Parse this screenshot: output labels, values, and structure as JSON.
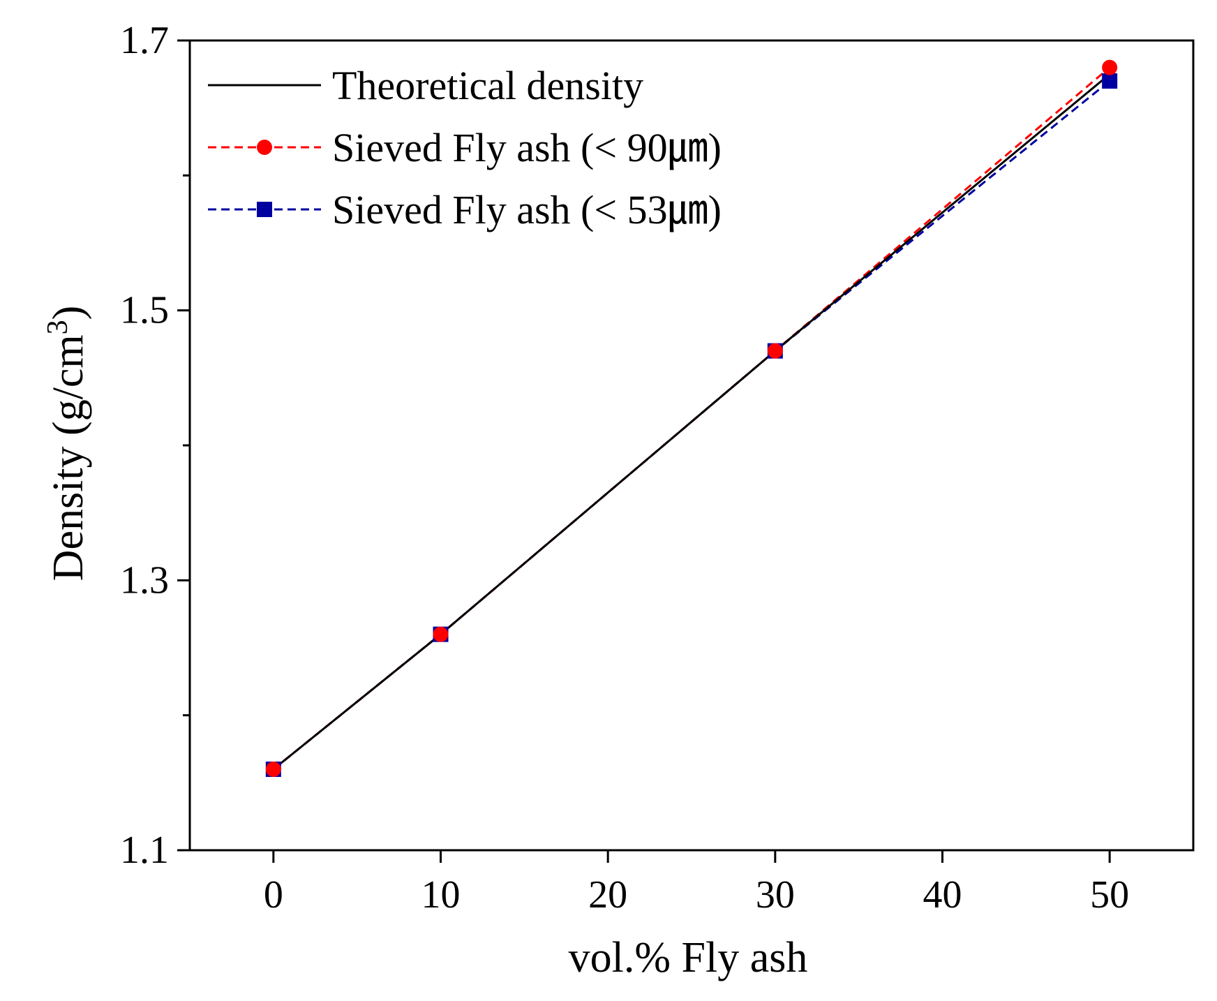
{
  "chart_data": {
    "type": "line",
    "title": "",
    "xlabel": "vol.% Fly ash",
    "ylabel": "Density (g/cm",
    "ylabel_superscript": "3",
    "ylabel_close": ")",
    "xlim": [
      -5,
      55
    ],
    "ylim": [
      1.1,
      1.7
    ],
    "xticks": [
      0,
      10,
      20,
      30,
      40,
      50
    ],
    "xtick_labels": [
      "0",
      "10",
      "20",
      "30",
      "40",
      "50"
    ],
    "yticks": [
      1.1,
      1.3,
      1.5,
      1.7
    ],
    "ytick_labels": [
      "1.1",
      "1.3",
      "1.5",
      "1.7"
    ],
    "yminor_ticks": [
      1.2,
      1.4,
      1.6
    ],
    "grid": false,
    "legend_position": "top-left",
    "series": [
      {
        "name": "Theoretical density",
        "color": "#000000",
        "line_style": "solid",
        "marker": "none",
        "x": [
          0,
          10,
          30,
          50
        ],
        "values": [
          1.16,
          1.26,
          1.47,
          1.675
        ]
      },
      {
        "name": "Sieved Fly ash (< 90㎛)",
        "color": "#ff0000",
        "line_style": "dashed",
        "marker": "circle",
        "x": [
          0,
          10,
          30,
          50
        ],
        "values": [
          1.16,
          1.26,
          1.47,
          1.68
        ]
      },
      {
        "name": "Sieved Fly ash (< 53㎛)",
        "color": "#0000a0",
        "line_style": "dashed",
        "marker": "square",
        "x": [
          0,
          10,
          30,
          50
        ],
        "values": [
          1.16,
          1.26,
          1.47,
          1.67
        ]
      }
    ]
  }
}
